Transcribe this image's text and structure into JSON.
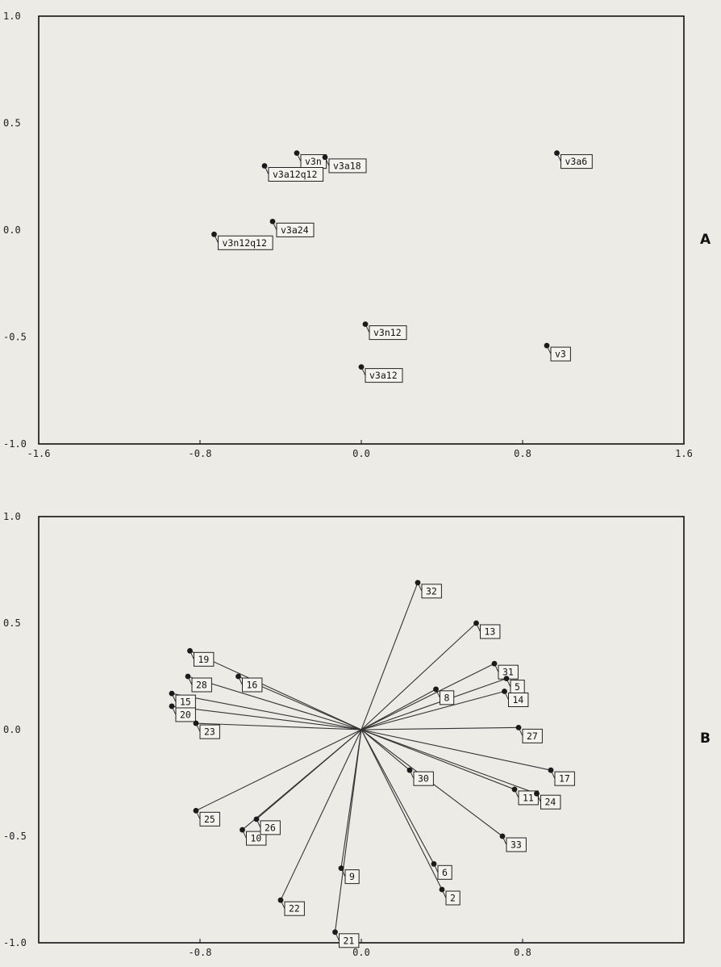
{
  "chart_data": [
    {
      "panel": "A",
      "type": "scatter",
      "xlim": [
        -1.6,
        1.6
      ],
      "ylim": [
        -1.0,
        1.0
      ],
      "xticks": [
        "-1.6",
        "-0.8",
        "0.0",
        "0.8",
        "1.6"
      ],
      "yticks": [
        "1.0",
        "0.5",
        "0.0",
        "-0.5",
        "-1.0"
      ],
      "grid": false,
      "points": [
        {
          "label": "v3n",
          "x": -0.32,
          "y": 0.36
        },
        {
          "label": "v3a18",
          "x": -0.18,
          "y": 0.34
        },
        {
          "label": "v3a12q12",
          "x": -0.48,
          "y": 0.3
        },
        {
          "label": "v3a6",
          "x": 0.97,
          "y": 0.36
        },
        {
          "label": "v3a24",
          "x": -0.44,
          "y": 0.04
        },
        {
          "label": "v3n12q12",
          "x": -0.73,
          "y": -0.02
        },
        {
          "label": "v3n12",
          "x": 0.02,
          "y": -0.44
        },
        {
          "label": "v3a12",
          "x": 0.0,
          "y": -0.64
        },
        {
          "label": "v3",
          "x": 0.92,
          "y": -0.54
        }
      ]
    },
    {
      "panel": "B",
      "type": "scatter",
      "xlim": [
        -1.6,
        1.6
      ],
      "ylim": [
        -1.0,
        1.0
      ],
      "xticks": [
        "-0.8",
        "0.0",
        "0.8"
      ],
      "yticks": [
        "1.0",
        "0.5",
        "0.0",
        "-0.5",
        "-1.0"
      ],
      "grid": false,
      "vectors_from_origin": true,
      "points": [
        {
          "label": "32",
          "x": 0.28,
          "y": 0.69
        },
        {
          "label": "13",
          "x": 0.57,
          "y": 0.5
        },
        {
          "label": "31",
          "x": 0.66,
          "y": 0.31
        },
        {
          "label": "5",
          "x": 0.72,
          "y": 0.24
        },
        {
          "label": "14",
          "x": 0.71,
          "y": 0.18
        },
        {
          "label": "8",
          "x": 0.37,
          "y": 0.19
        },
        {
          "label": "27",
          "x": 0.78,
          "y": 0.01
        },
        {
          "label": "17",
          "x": 0.94,
          "y": -0.19
        },
        {
          "label": "11",
          "x": 0.76,
          "y": -0.28
        },
        {
          "label": "24",
          "x": 0.87,
          "y": -0.3
        },
        {
          "label": "30",
          "x": 0.24,
          "y": -0.19
        },
        {
          "label": "33",
          "x": 0.7,
          "y": -0.5
        },
        {
          "label": "6",
          "x": 0.36,
          "y": -0.63
        },
        {
          "label": "2",
          "x": 0.4,
          "y": -0.75
        },
        {
          "label": "9",
          "x": -0.1,
          "y": -0.65
        },
        {
          "label": "21",
          "x": -0.13,
          "y": -0.95
        },
        {
          "label": "22",
          "x": -0.4,
          "y": -0.8
        },
        {
          "label": "25",
          "x": -0.82,
          "y": -0.38
        },
        {
          "label": "10",
          "x": -0.59,
          "y": -0.47
        },
        {
          "label": "26",
          "x": -0.52,
          "y": -0.42
        },
        {
          "label": "19",
          "x": -0.85,
          "y": 0.37
        },
        {
          "label": "16",
          "x": -0.61,
          "y": 0.25
        },
        {
          "label": "28",
          "x": -0.86,
          "y": 0.25
        },
        {
          "label": "15",
          "x": -0.94,
          "y": 0.17
        },
        {
          "label": "20",
          "x": -0.94,
          "y": 0.11
        },
        {
          "label": "23",
          "x": -0.82,
          "y": 0.03
        }
      ]
    }
  ],
  "panel_letters": {
    "a": "A",
    "b": "B"
  }
}
